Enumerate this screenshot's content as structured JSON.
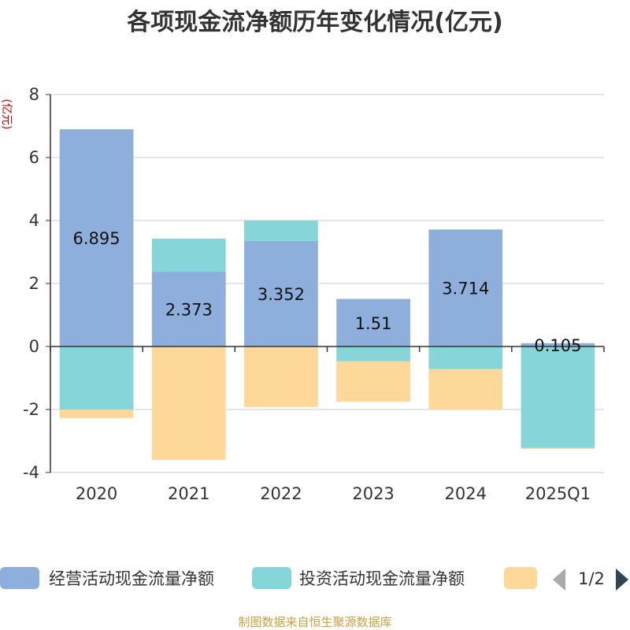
{
  "chart_data": {
    "type": "bar",
    "stacked": true,
    "title": "各项现金流净额历年变化情况(亿元)",
    "ylabel": "(亿元)",
    "categories": [
      "2020",
      "2021",
      "2022",
      "2023",
      "2024",
      "2025Q1"
    ],
    "ylim": [
      -4,
      8
    ],
    "yticks": [
      -4,
      -2,
      0,
      2,
      4,
      6,
      8
    ],
    "grid": true,
    "series": [
      {
        "name": "经营活动现金流量净额",
        "color": "#8eaedb",
        "values": [
          6.895,
          2.373,
          3.352,
          1.51,
          3.714,
          0.105
        ],
        "labels": [
          "6.895",
          "2.373",
          "3.352",
          "1.51",
          "3.714",
          "0.105"
        ]
      },
      {
        "name": "投资活动现金流量净额",
        "color": "#86d5d8",
        "values": [
          -2.0,
          1.05,
          0.65,
          -0.47,
          -0.72,
          -3.22
        ]
      },
      {
        "name": "",
        "color": "#fdd898",
        "values": [
          -0.27,
          -3.6,
          -1.92,
          -1.28,
          -1.28,
          -0.03
        ]
      }
    ],
    "legend": {
      "position": "bottom",
      "page": "1/2"
    },
    "source": "制图数据来自恒生聚源数据库"
  }
}
